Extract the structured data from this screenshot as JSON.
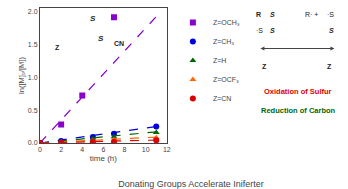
{
  "chart_data": {
    "type": "scatter",
    "title": "Donating Groups Accelerate Iniferter",
    "x_label": "time (h)",
    "y_label": "ln([M]₀/[M])",
    "xlim": [
      0,
      12
    ],
    "ylim": [
      0,
      2.05
    ],
    "xticks": [
      0,
      2,
      4,
      6,
      8,
      10,
      12
    ],
    "yticks": [
      {
        "value": 0,
        "label": "0.0"
      },
      0.5,
      {
        "value": 1,
        "label": "1.0"
      },
      1.5,
      {
        "value": 2,
        "label": "2.0"
      }
    ],
    "grid": false,
    "legend": "right",
    "series": [
      {
        "name": "Z=OCH₃",
        "color": "#8800cc",
        "marker": "square",
        "x": [
          0,
          2,
          4,
          7
        ],
        "values": [
          0.0,
          0.28,
          0.72,
          1.91
        ],
        "fit": {
          "x": [
            0,
            11
          ],
          "values": [
            0.0,
            1.92
          ],
          "line_style": "dashed"
        }
      },
      {
        "name": "Z=CH₃",
        "color": "#0000dd",
        "marker": "circle",
        "x": [
          0,
          2,
          5,
          7,
          11
        ],
        "values": [
          0.0,
          0.03,
          0.09,
          0.14,
          0.25
        ],
        "fit": {
          "x": [
            0,
            11
          ],
          "values": [
            0.0,
            0.25
          ],
          "line_style": "dashed"
        }
      },
      {
        "name": "Z=H",
        "color": "#006600",
        "marker": "triangle-up",
        "x": [
          0,
          2,
          5,
          7,
          11
        ],
        "values": [
          0.0,
          0.02,
          0.06,
          0.09,
          0.16
        ],
        "fit": {
          "x": [
            0,
            11
          ],
          "values": [
            0.0,
            0.17
          ],
          "line_style": "dashed"
        }
      },
      {
        "name": "Z=OCF₃",
        "color": "#ff6600",
        "marker": "triangle-up",
        "x": [
          0,
          2,
          5,
          7,
          11
        ],
        "values": [
          0.0,
          0.01,
          0.03,
          0.05,
          0.08
        ],
        "fit": {
          "x": [
            0,
            11
          ],
          "values": [
            0.0,
            0.09
          ],
          "line_style": "dashed"
        }
      },
      {
        "name": "Z=CN",
        "color": "#dd0000",
        "marker": "circle",
        "x": [
          0,
          2,
          5,
          7,
          11
        ],
        "values": [
          0.0,
          0.005,
          0.015,
          0.02,
          0.04
        ],
        "fit": {
          "x": [
            0,
            11
          ],
          "values": [
            0.0,
            0.045
          ],
          "line_style": "dashed"
        }
      }
    ],
    "annotations": [
      {
        "text": "S"
      },
      {
        "text": "S"
      },
      {
        "text": "CN"
      },
      {
        "text": "Z"
      },
      {
        "text": "R"
      },
      {
        "text": "·S"
      },
      {
        "text": "S"
      },
      {
        "text": "S"
      },
      {
        "text": "Z"
      },
      {
        "text": "R· +"
      },
      {
        "text": "·S"
      },
      {
        "text": "S"
      },
      {
        "text": "Z"
      },
      {
        "text": "Oxidation of Sulfur",
        "color": "#dd0000"
      },
      {
        "text": "Reduction of Carbon",
        "color": "#006600"
      }
    ]
  }
}
